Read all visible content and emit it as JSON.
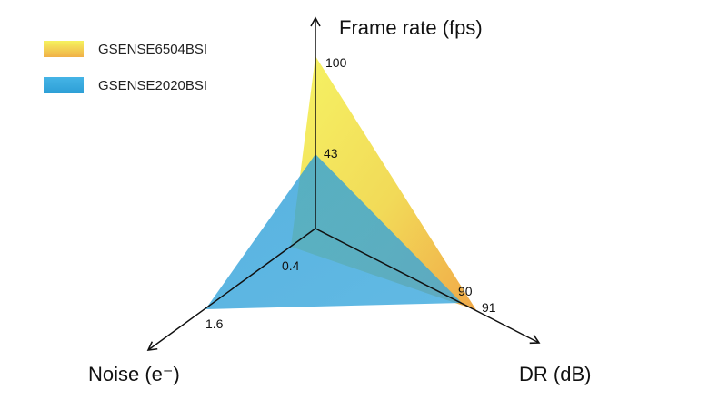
{
  "chart_data": {
    "type": "radar",
    "axes": [
      {
        "name": "Frame rate (fps)"
      },
      {
        "name": "DR (dB)"
      },
      {
        "name": "Noise (e⁻)"
      }
    ],
    "series": [
      {
        "name": "GSENSE6504BSI",
        "values": [
          100,
          91,
          0.4
        ],
        "labels": [
          "100",
          "91",
          "0.4"
        ],
        "color_start": "#f2f25a",
        "color_end": "#f0a640"
      },
      {
        "name": "GSENSE2020BSI",
        "values": [
          43,
          90,
          1.6
        ],
        "labels": [
          "43",
          "90",
          "1.6"
        ],
        "color_start": "#2aa6de",
        "color_end": "#3fa9dc"
      }
    ],
    "legend_position": "top-left",
    "grid": false
  }
}
